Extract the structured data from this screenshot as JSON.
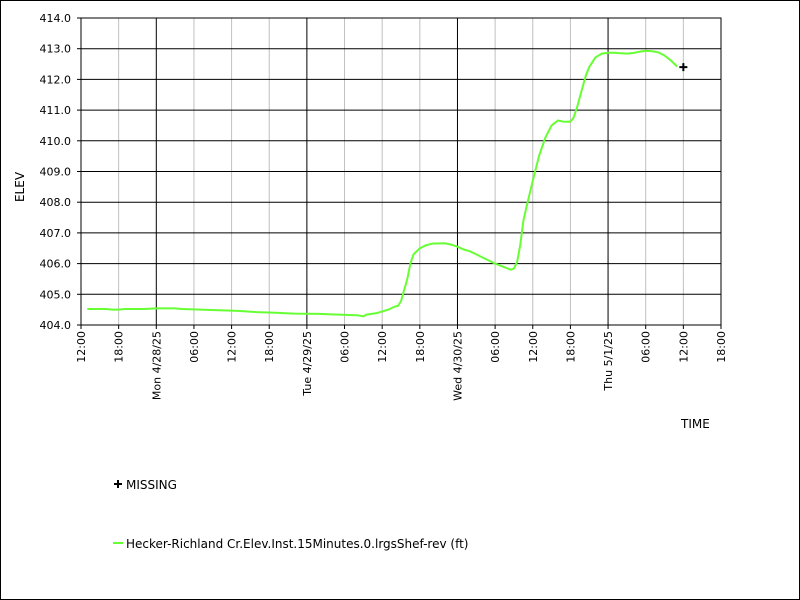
{
  "chart_data": {
    "type": "line",
    "ylabel": "ELEV",
    "xlabel": "TIME",
    "ylim": [
      404.0,
      414.0
    ],
    "yticks": [
      "404.0",
      "405.0",
      "406.0",
      "407.0",
      "408.0",
      "409.0",
      "410.0",
      "411.0",
      "412.0",
      "413.0",
      "414.0"
    ],
    "xlim_hours": [
      0,
      102
    ],
    "xticks": [
      {
        "h": 0,
        "label": "12:00"
      },
      {
        "h": 6,
        "label": "18:00"
      },
      {
        "h": 12,
        "label": "Mon 4/28/25"
      },
      {
        "h": 18,
        "label": "06:00"
      },
      {
        "h": 24,
        "label": "12:00"
      },
      {
        "h": 30,
        "label": "18:00"
      },
      {
        "h": 36,
        "label": "Tue 4/29/25"
      },
      {
        "h": 42,
        "label": "06:00"
      },
      {
        "h": 48,
        "label": "12:00"
      },
      {
        "h": 54,
        "label": "18:00"
      },
      {
        "h": 60,
        "label": "Wed 4/30/25"
      },
      {
        "h": 66,
        "label": "06:00"
      },
      {
        "h": 72,
        "label": "12:00"
      },
      {
        "h": 78,
        "label": "18:00"
      },
      {
        "h": 84,
        "label": "Thu 5/1/25"
      },
      {
        "h": 90,
        "label": "06:00"
      },
      {
        "h": 96,
        "label": "12:00"
      },
      {
        "h": 102,
        "label": "18:00"
      }
    ],
    "major_gridlines_hours": [
      12,
      36,
      60,
      84
    ],
    "series": [
      {
        "name": "Hecker-Richland Cr.Elev.Inst.15Minutes.0.lrgsShef-rev (ft)",
        "color": "#66ff33",
        "points": [
          [
            1,
            404.52
          ],
          [
            4,
            404.52
          ],
          [
            5,
            404.5
          ],
          [
            6,
            404.5
          ],
          [
            7,
            404.52
          ],
          [
            10,
            404.52
          ],
          [
            12,
            404.54
          ],
          [
            15,
            404.54
          ],
          [
            16,
            404.52
          ],
          [
            19,
            404.5
          ],
          [
            22,
            404.48
          ],
          [
            25,
            404.46
          ],
          [
            28,
            404.42
          ],
          [
            31,
            404.4
          ],
          [
            34,
            404.37
          ],
          [
            38,
            404.36
          ],
          [
            41,
            404.34
          ],
          [
            44,
            404.32
          ],
          [
            45,
            404.28
          ],
          [
            45.5,
            404.34
          ],
          [
            47,
            404.38
          ],
          [
            49,
            404.5
          ],
          [
            50,
            404.6
          ],
          [
            50.5,
            404.62
          ],
          [
            51,
            404.78
          ],
          [
            52,
            405.5
          ],
          [
            52.5,
            406.0
          ],
          [
            53,
            406.3
          ],
          [
            54,
            406.5
          ],
          [
            55,
            406.6
          ],
          [
            56,
            406.65
          ],
          [
            58,
            406.66
          ],
          [
            59,
            406.62
          ],
          [
            60,
            406.55
          ],
          [
            61,
            406.46
          ],
          [
            62,
            406.4
          ],
          [
            63,
            406.3
          ],
          [
            64,
            406.2
          ],
          [
            65,
            406.1
          ],
          [
            66,
            406.0
          ],
          [
            67,
            405.92
          ],
          [
            68,
            405.84
          ],
          [
            68.5,
            405.8
          ],
          [
            69,
            405.84
          ],
          [
            69.5,
            406.05
          ],
          [
            70,
            406.6
          ],
          [
            70.5,
            407.4
          ],
          [
            71,
            407.85
          ],
          [
            72,
            408.7
          ],
          [
            73,
            409.5
          ],
          [
            74,
            410.1
          ],
          [
            75,
            410.5
          ],
          [
            76,
            410.66
          ],
          [
            77,
            410.62
          ],
          [
            78,
            410.62
          ],
          [
            78.5,
            410.75
          ],
          [
            79,
            411.05
          ],
          [
            80,
            411.8
          ],
          [
            80.5,
            412.15
          ],
          [
            81,
            412.4
          ],
          [
            82,
            412.72
          ],
          [
            83,
            412.84
          ],
          [
            84,
            412.87
          ],
          [
            85,
            412.87
          ],
          [
            86,
            412.85
          ],
          [
            87,
            412.84
          ],
          [
            88,
            412.86
          ],
          [
            89,
            412.9
          ],
          [
            90,
            412.93
          ],
          [
            91,
            412.92
          ],
          [
            92,
            412.88
          ],
          [
            93,
            412.78
          ],
          [
            94,
            412.62
          ],
          [
            95,
            412.42
          ]
        ]
      }
    ],
    "missing_markers": [
      [
        96,
        412.4
      ]
    ],
    "legend": {
      "missing_label": "MISSING",
      "series_label": "Hecker-Richland Cr.Elev.Inst.15Minutes.0.lrgsShef-rev (ft)"
    },
    "grid": true
  }
}
